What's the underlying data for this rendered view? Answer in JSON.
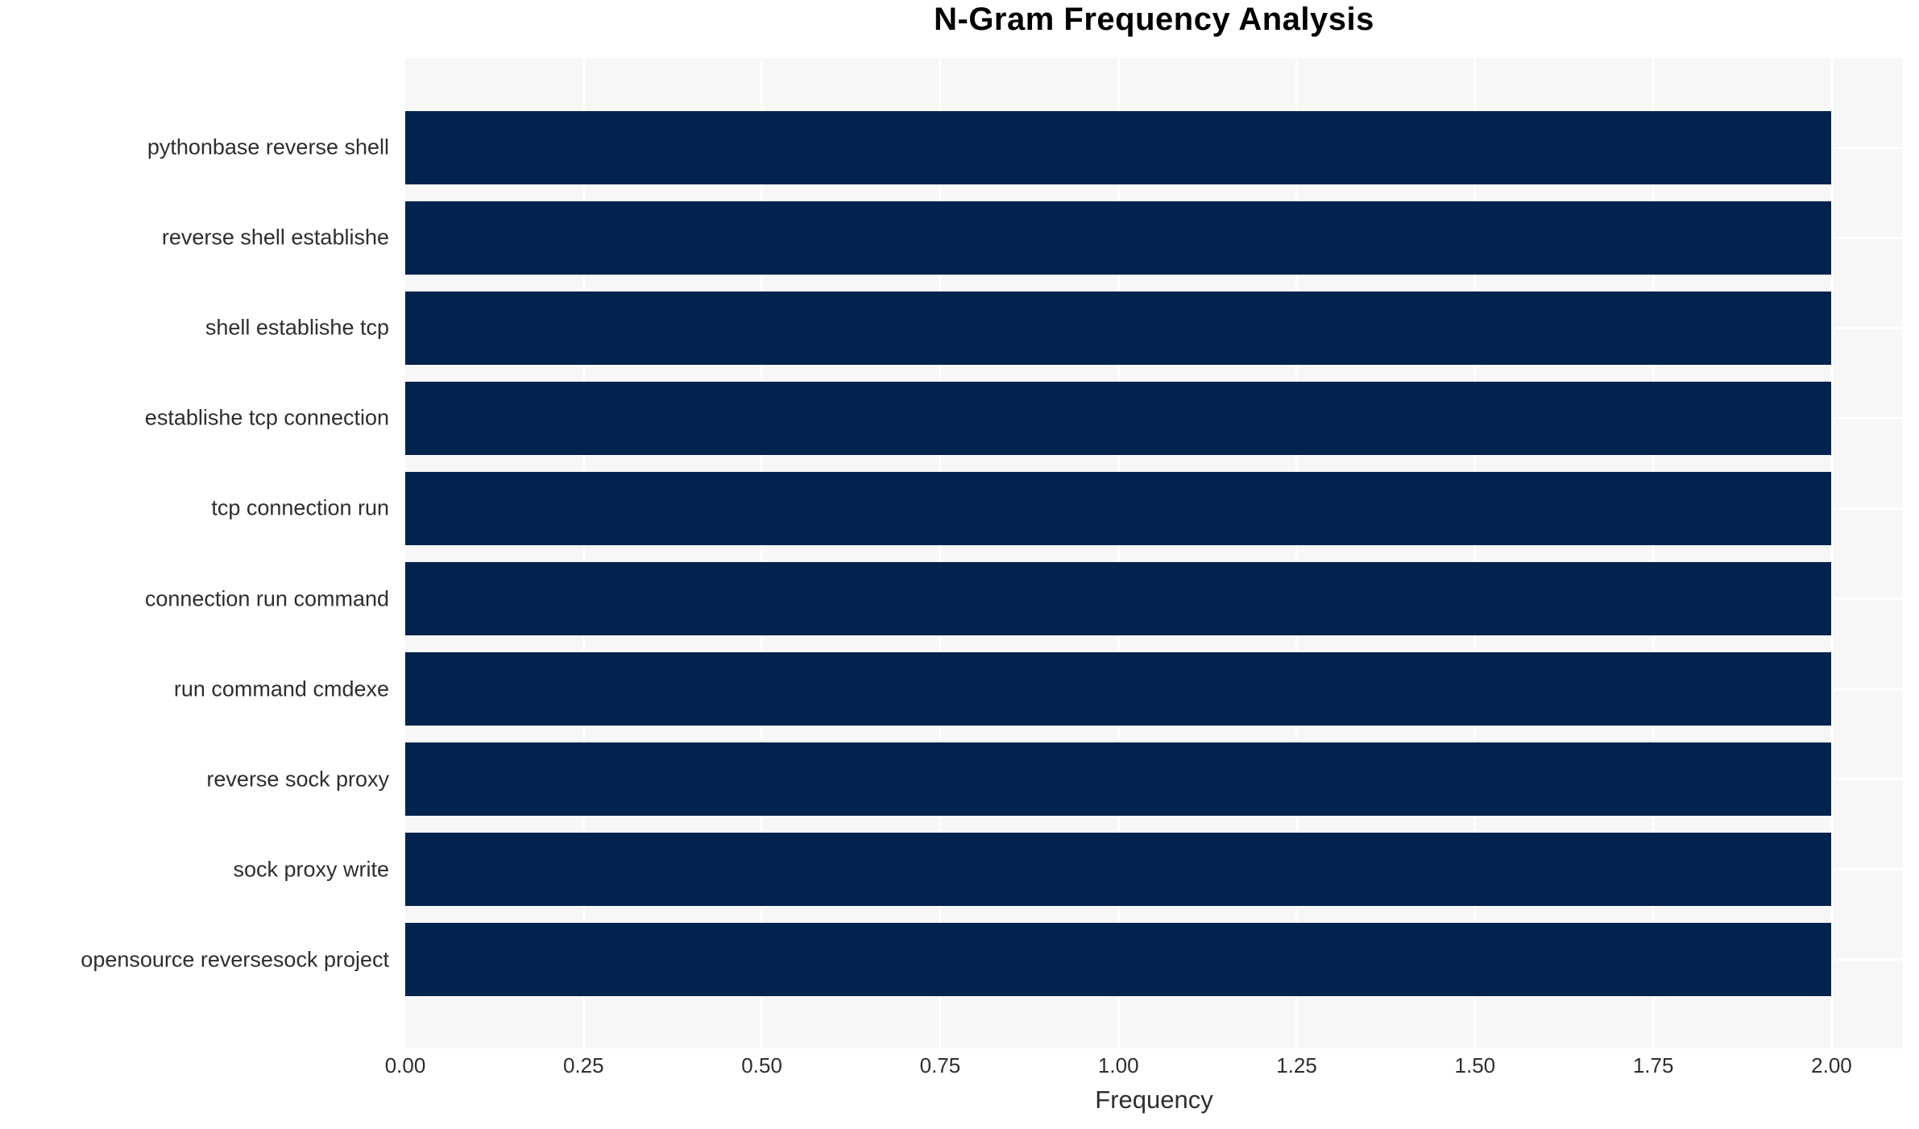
{
  "chart_data": {
    "type": "bar",
    "orientation": "horizontal",
    "title": "N-Gram Frequency Analysis",
    "xlabel": "Frequency",
    "ylabel": "",
    "categories": [
      "pythonbase reverse shell",
      "reverse shell establishe",
      "shell establishe tcp",
      "establishe tcp connection",
      "tcp connection run",
      "connection run command",
      "run command cmdexe",
      "reverse sock proxy",
      "sock proxy write",
      "opensource reversesock project"
    ],
    "values": [
      2,
      2,
      2,
      2,
      2,
      2,
      2,
      2,
      2,
      2
    ],
    "x_ticks": [
      "0.00",
      "0.25",
      "0.50",
      "0.75",
      "1.00",
      "1.25",
      "1.50",
      "1.75",
      "2.00"
    ],
    "x_tick_values": [
      0,
      0.25,
      0.5,
      0.75,
      1.0,
      1.25,
      1.5,
      1.75,
      2.0
    ],
    "xlim": [
      0,
      2.1
    ],
    "grid": true,
    "legend": false,
    "colors": {
      "bar": "#02234d",
      "plot_background": "#f7f7f7",
      "gridline": "#ffffff",
      "page_background": "#ffffff",
      "tick_text": "#2e2e2e",
      "title_text": "#000000"
    }
  }
}
